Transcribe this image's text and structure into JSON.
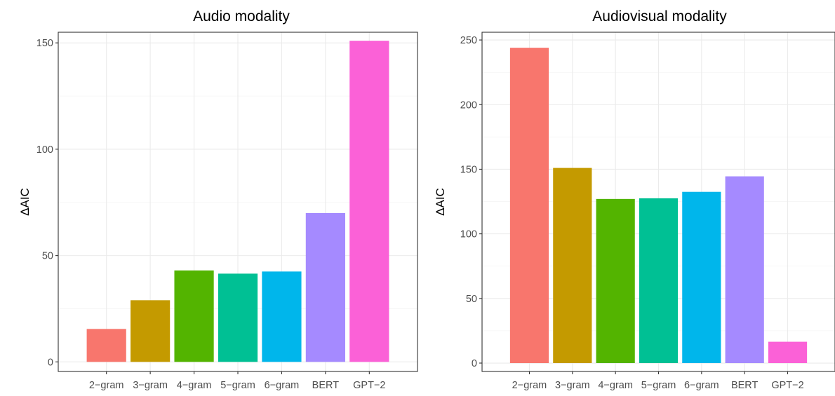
{
  "chart_data": [
    {
      "type": "bar",
      "title": "Audio modality",
      "ylabel": "ΔAIC",
      "xlabel": "",
      "categories": [
        "2−gram",
        "3−gram",
        "4−gram",
        "5−gram",
        "6−gram",
        "BERT",
        "GPT−2"
      ],
      "values": [
        15.5,
        29,
        43,
        41.5,
        42.5,
        70,
        151
      ],
      "colors": [
        "#F8766D",
        "#C49A00",
        "#53B400",
        "#00C094",
        "#00B6EB",
        "#A58AFF",
        "#FB61D7"
      ],
      "ylim": [
        -4.5,
        155
      ],
      "yticks": [
        0,
        50,
        100,
        150
      ],
      "grid": true,
      "legend": "none"
    },
    {
      "type": "bar",
      "title": "Audiovisual modality",
      "ylabel": "ΔAIC",
      "xlabel": "",
      "categories": [
        "2−gram",
        "3−gram",
        "4−gram",
        "5−gram",
        "6−gram",
        "BERT",
        "GPT−2"
      ],
      "values": [
        244,
        151,
        127,
        127.5,
        132.5,
        144.5,
        16.5
      ],
      "colors": [
        "#F8766D",
        "#C49A00",
        "#53B400",
        "#00C094",
        "#00B6EB",
        "#A58AFF",
        "#FB61D7"
      ],
      "ylim": [
        -6.5,
        256
      ],
      "yticks": [
        0,
        50,
        100,
        150,
        200,
        250
      ],
      "grid": true,
      "legend": "none"
    }
  ]
}
